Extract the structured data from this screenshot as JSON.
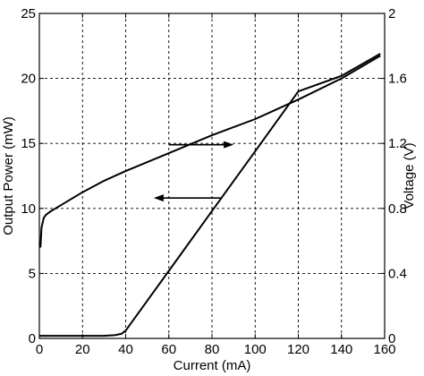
{
  "chart_data": {
    "type": "line",
    "title": "",
    "xlabel": "Current (mA)",
    "ylabel": "Output Power (mW)",
    "y2label": "Voltage (V)",
    "xlim": [
      0,
      160
    ],
    "ylim": [
      0,
      25
    ],
    "y2lim": [
      0,
      2
    ],
    "xticks": [
      "0",
      "20",
      "40",
      "60",
      "80",
      "100",
      "120",
      "140",
      "160"
    ],
    "yticks": [
      "0",
      "5",
      "10",
      "15",
      "20",
      "25"
    ],
    "y2ticks": [
      "0",
      "0.4",
      "0.8",
      "1.2",
      "1.6",
      "2"
    ],
    "grid": true,
    "series": [
      {
        "axis": "left",
        "x": [
          0,
          10,
          20,
          30,
          35,
          38,
          40,
          50,
          60,
          80,
          100,
          120,
          140,
          158
        ],
        "y": [
          0.2,
          0.2,
          0.2,
          0.2,
          0.25,
          0.35,
          0.6,
          2.9,
          5.2,
          9.8,
          14.4,
          19.0,
          20.2,
          21.9
        ]
      },
      {
        "axis": "right",
        "x": [
          0.5,
          1,
          2,
          3,
          5,
          10,
          20,
          30,
          40,
          60,
          80,
          100,
          120,
          140,
          158
        ],
        "y": [
          0.56,
          0.68,
          0.74,
          0.76,
          0.78,
          0.82,
          0.9,
          0.97,
          1.03,
          1.14,
          1.25,
          1.35,
          1.47,
          1.6,
          1.74
        ]
      }
    ],
    "annotations": [
      {
        "type": "arrow",
        "direction": "right",
        "points_to": "right-axis",
        "x": [
          60,
          90
        ],
        "y": 14.9
      },
      {
        "type": "arrow",
        "direction": "left",
        "points_to": "left-axis",
        "x": [
          84,
          53
        ],
        "y": 10.8
      }
    ]
  }
}
